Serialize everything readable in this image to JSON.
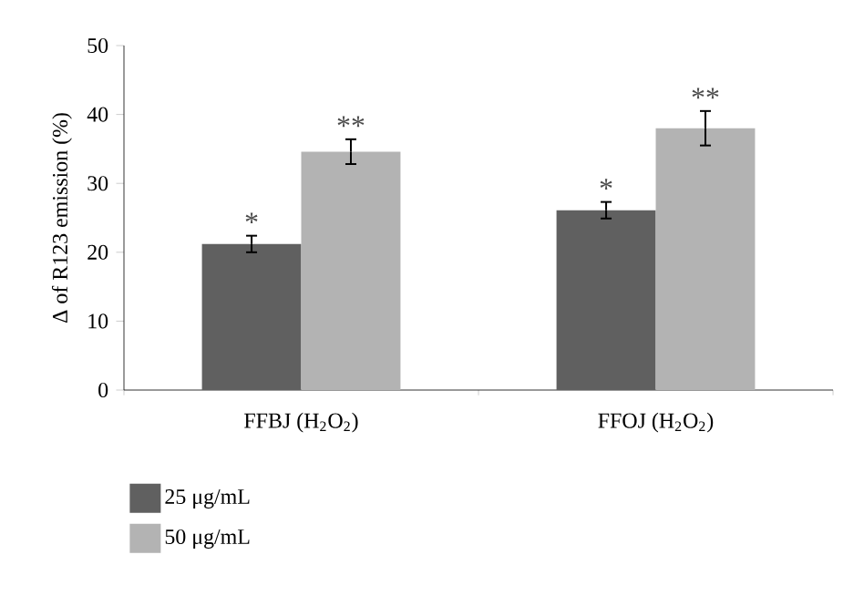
{
  "chart_data": {
    "type": "bar",
    "ylabel": "Δ of R123 emission (%)",
    "categories": [
      "FFBJ (H$_{2}$O$_{2}$)",
      "FFOJ (H$_{2}$O$_{2}$)"
    ],
    "series": [
      {
        "name": "25 μg/mL",
        "color": "#606060",
        "values": [
          21.2,
          26.1
        ],
        "errors": [
          1.2,
          1.2
        ]
      },
      {
        "name": "50 μg/mL",
        "color": "#b3b3b3",
        "values": [
          34.6,
          38.0
        ],
        "errors": [
          1.8,
          2.5
        ]
      }
    ],
    "ylim": [
      0,
      50
    ],
    "yticks": [
      0,
      10,
      20,
      30,
      40,
      50
    ],
    "legend": "bottom left",
    "annotations": [
      "*",
      "**",
      "*",
      "**"
    ]
  }
}
